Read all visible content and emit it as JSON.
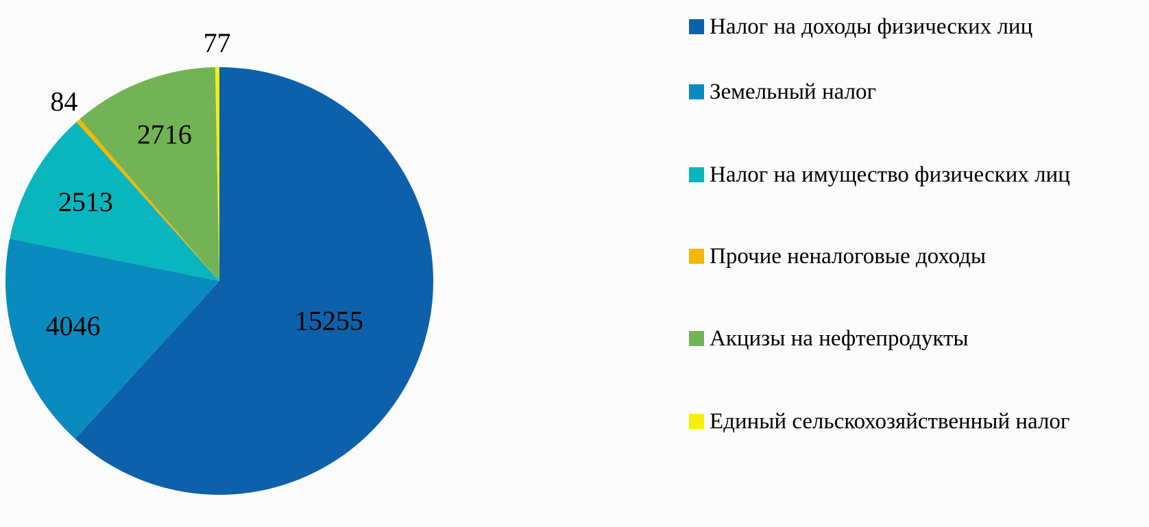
{
  "chart_data": {
    "type": "pie",
    "categories": [
      "Налог на доходы физических лиц",
      "Земельный налог",
      "Налог на имущество физических лиц",
      "Прочие неналоговые доходы",
      "Акцизы на нефтепродукты",
      "Единый сельскохозяйственный налог"
    ],
    "values": [
      15255,
      4046,
      2513,
      84,
      2716,
      77
    ],
    "colors": [
      "#0d61ab",
      "#0a8bc0",
      "#0ab6bd",
      "#f6b800",
      "#72b355",
      "#f5f00a"
    ],
    "legend": "right"
  }
}
